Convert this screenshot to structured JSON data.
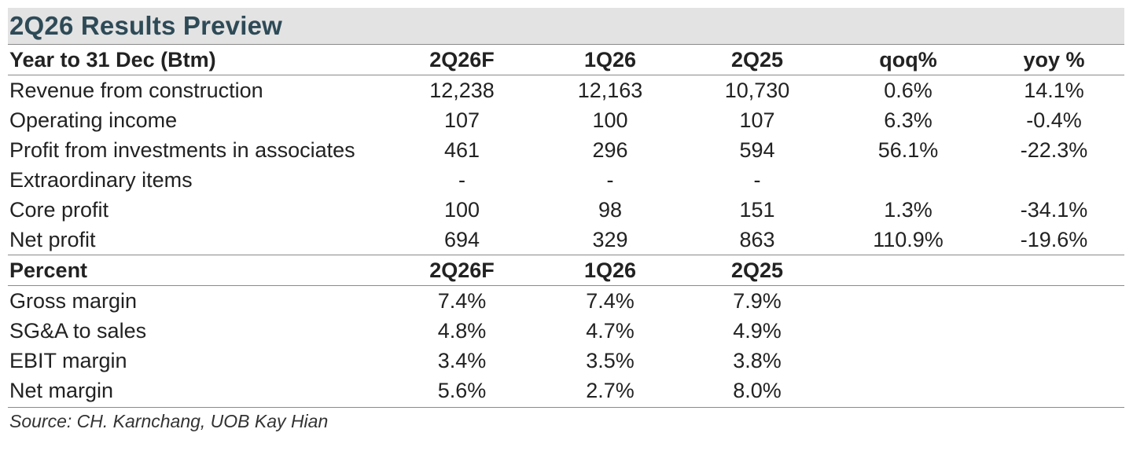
{
  "title": "2Q26 Results Preview",
  "section1": {
    "header": [
      "Year to 31 Dec (Btm)",
      "2Q26F",
      "1Q26",
      "2Q25",
      "qoq%",
      "yoy %"
    ],
    "rows": [
      [
        "Revenue from construction",
        "12,238",
        "12,163",
        "10,730",
        "0.6%",
        "14.1%"
      ],
      [
        "Operating income",
        "107",
        "100",
        "107",
        "6.3%",
        "-0.4%"
      ],
      [
        "Profit from investments in associates",
        "461",
        "296",
        "594",
        "56.1%",
        "-22.3%"
      ],
      [
        "Extraordinary items",
        "-",
        "-",
        "-",
        "",
        ""
      ],
      [
        "Core profit",
        "100",
        "98",
        "151",
        "1.3%",
        "-34.1%"
      ],
      [
        "Net profit",
        "694",
        "329",
        "863",
        "110.9%",
        "-19.6%"
      ]
    ]
  },
  "section2": {
    "header": [
      "Percent",
      "2Q26F",
      "1Q26",
      "2Q25",
      "",
      ""
    ],
    "rows": [
      [
        "Gross margin",
        "7.4%",
        "7.4%",
        "7.9%",
        "",
        ""
      ],
      [
        "SG&A to sales",
        "4.8%",
        "4.7%",
        "4.9%",
        "",
        ""
      ],
      [
        "EBIT margin",
        "3.4%",
        "3.5%",
        "3.8%",
        "",
        ""
      ],
      [
        "Net margin",
        "5.6%",
        "2.7%",
        "8.0%",
        "",
        ""
      ]
    ]
  },
  "source": "Source: CH. Karnchang, UOB Kay Hian"
}
